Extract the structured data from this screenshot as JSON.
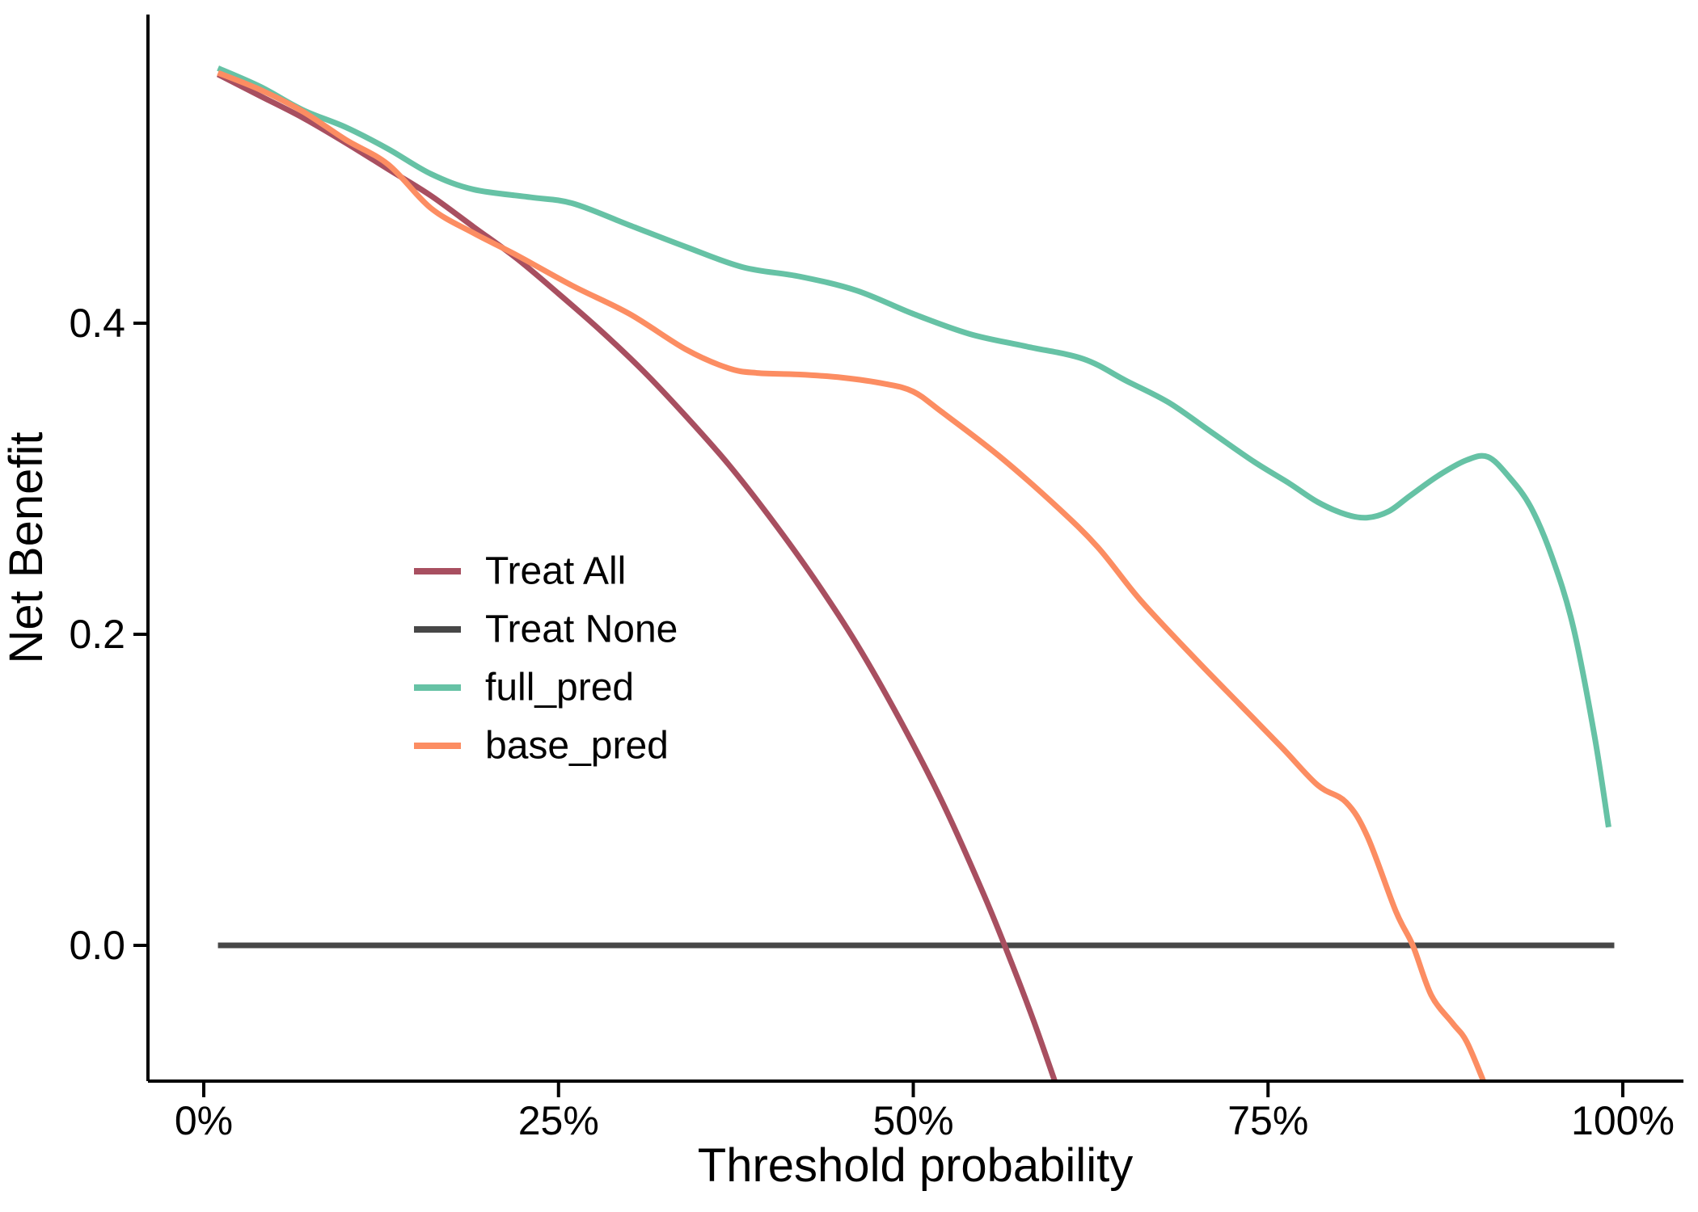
{
  "chart_data": {
    "type": "line",
    "title": "",
    "xlabel": "Threshold probability",
    "ylabel": "Net Benefit",
    "x_unit": "percent",
    "xlim": [
      0,
      100
    ],
    "ylim": [
      -0.09,
      0.58
    ],
    "grid": false,
    "legend_position": "inside-left-middle",
    "x_ticks": [
      {
        "value": 0,
        "label": "0%"
      },
      {
        "value": 25,
        "label": "25%"
      },
      {
        "value": 50,
        "label": "50%"
      },
      {
        "value": 75,
        "label": "75%"
      },
      {
        "value": 100,
        "label": "100%"
      }
    ],
    "y_ticks": [
      {
        "value": 0.0,
        "label": "0.0"
      },
      {
        "value": 0.2,
        "label": "0.2"
      },
      {
        "value": 0.4,
        "label": "0.4"
      }
    ],
    "axis_color": "#000000",
    "series": [
      {
        "name": "Treat None",
        "color": "#474747",
        "legend_order": 2,
        "points": [
          [
            1,
            0
          ],
          [
            99.4,
            0
          ]
        ]
      },
      {
        "name": "Treat All",
        "color": "#A84F60",
        "legend_order": 1,
        "points": [
          [
            1,
            0.56
          ],
          [
            4,
            0.546
          ],
          [
            7,
            0.532
          ],
          [
            10,
            0.516
          ],
          [
            13,
            0.499
          ],
          [
            16,
            0.482
          ],
          [
            19,
            0.462
          ],
          [
            22,
            0.442
          ],
          [
            25,
            0.419
          ],
          [
            28,
            0.395
          ],
          [
            31,
            0.369
          ],
          [
            34,
            0.34
          ],
          [
            37,
            0.309
          ],
          [
            40,
            0.274
          ],
          [
            43,
            0.236
          ],
          [
            46,
            0.194
          ],
          [
            49,
            0.146
          ],
          [
            52,
            0.093
          ],
          [
            55,
            0.032
          ],
          [
            57,
            -0.013
          ],
          [
            58.5,
            -0.049
          ],
          [
            60,
            -0.088
          ]
        ]
      },
      {
        "name": "full_pred",
        "color": "#66C2A5",
        "legend_order": 3,
        "points": [
          [
            1,
            0.564
          ],
          [
            4,
            0.552
          ],
          [
            7,
            0.537
          ],
          [
            10,
            0.526
          ],
          [
            13,
            0.512
          ],
          [
            16,
            0.496
          ],
          [
            19,
            0.486
          ],
          [
            23,
            0.481
          ],
          [
            26,
            0.477
          ],
          [
            30,
            0.463
          ],
          [
            34,
            0.449
          ],
          [
            38,
            0.436
          ],
          [
            42,
            0.43
          ],
          [
            46,
            0.421
          ],
          [
            50,
            0.406
          ],
          [
            54,
            0.393
          ],
          [
            58,
            0.385
          ],
          [
            62,
            0.377
          ],
          [
            65,
            0.363
          ],
          [
            68,
            0.349
          ],
          [
            71,
            0.33
          ],
          [
            74,
            0.311
          ],
          [
            76.5,
            0.297
          ],
          [
            78.5,
            0.285
          ],
          [
            80.5,
            0.277
          ],
          [
            82,
            0.275
          ],
          [
            83.5,
            0.279
          ],
          [
            85,
            0.289
          ],
          [
            87,
            0.302
          ],
          [
            89,
            0.312
          ],
          [
            90.5,
            0.314
          ],
          [
            92,
            0.301
          ],
          [
            93.5,
            0.282
          ],
          [
            95,
            0.25
          ],
          [
            96.5,
            0.205
          ],
          [
            98,
            0.135
          ],
          [
            99,
            0.076
          ]
        ]
      },
      {
        "name": "base_pred",
        "color": "#FC8D62",
        "legend_order": 4,
        "points": [
          [
            1,
            0.561
          ],
          [
            4,
            0.55
          ],
          [
            7,
            0.536
          ],
          [
            10,
            0.518
          ],
          [
            13,
            0.502
          ],
          [
            16,
            0.474
          ],
          [
            19,
            0.458
          ],
          [
            22,
            0.444
          ],
          [
            26,
            0.424
          ],
          [
            30,
            0.406
          ],
          [
            34,
            0.383
          ],
          [
            37,
            0.371
          ],
          [
            39,
            0.368
          ],
          [
            42,
            0.367
          ],
          [
            45,
            0.365
          ],
          [
            48,
            0.361
          ],
          [
            50,
            0.356
          ],
          [
            52,
            0.343
          ],
          [
            56,
            0.315
          ],
          [
            60,
            0.283
          ],
          [
            63,
            0.256
          ],
          [
            66,
            0.222
          ],
          [
            70,
            0.183
          ],
          [
            73,
            0.155
          ],
          [
            76,
            0.127
          ],
          [
            78.5,
            0.103
          ],
          [
            80.5,
            0.092
          ],
          [
            82,
            0.07
          ],
          [
            84,
            0.022
          ],
          [
            85.2,
            0.0
          ],
          [
            86.5,
            -0.032
          ],
          [
            88,
            -0.05
          ],
          [
            89,
            -0.062
          ],
          [
            90.3,
            -0.09
          ]
        ]
      }
    ],
    "legend": {
      "items": [
        {
          "label": "Treat All",
          "color": "#A84F60"
        },
        {
          "label": "Treat None",
          "color": "#474747"
        },
        {
          "label": "full_pred",
          "color": "#66C2A5"
        },
        {
          "label": "base_pred",
          "color": "#FC8D62"
        }
      ]
    }
  }
}
